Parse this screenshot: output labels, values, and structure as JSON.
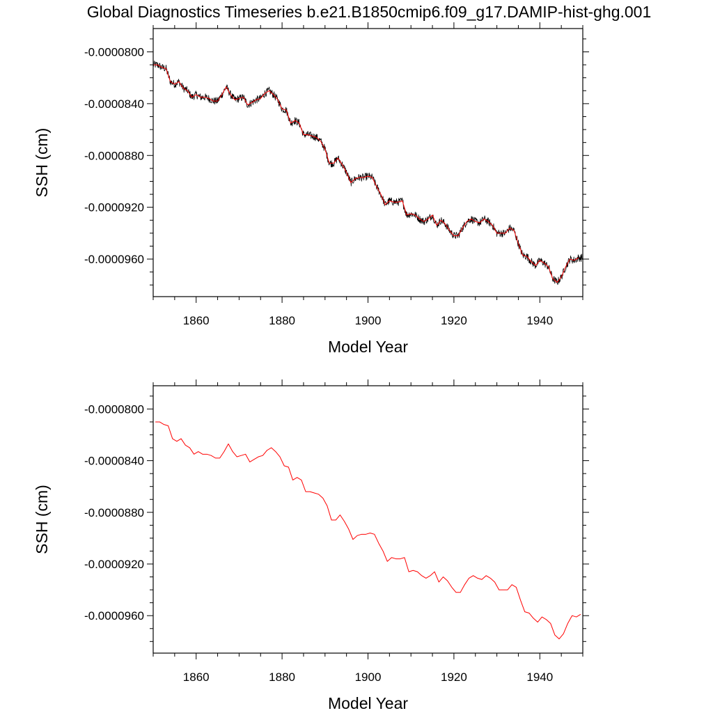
{
  "title": "Global Diagnostics Timeseries b.e21.B1850cmip6.f09_g17.DAMIP-hist-ghg.001",
  "colors": {
    "monthly": "#000000",
    "annual": "#ff0000",
    "axes": "#000000"
  },
  "chart_data": [
    {
      "type": "line",
      "title": "Global Diagnostics Timeseries b.e21.B1850cmip6.f09_g17.DAMIP-hist-ghg.001",
      "xlabel": "Model Year",
      "ylabel": "SSH (cm)",
      "xlim": [
        1850,
        1950
      ],
      "ylim": [
        -9.89e-05,
        -7.82e-05
      ],
      "xticks": [
        1860,
        1880,
        1900,
        1920,
        1940
      ],
      "xtick_labels": [
        "1860",
        "1880",
        "1900",
        "1920",
        "1940"
      ],
      "yticks": [
        -8e-05,
        -8.4e-05,
        -8.8e-05,
        -9.2e-05,
        -9.6e-05
      ],
      "ytick_labels": [
        "-0.0000800",
        "-0.0000840",
        "-0.0000880",
        "-0.0000920",
        "-0.0000960"
      ],
      "grid": false,
      "series": [
        {
          "key": "monthly",
          "color": "#000000",
          "resolution": "monthly",
          "noise": 3e-07,
          "follows": "annual"
        },
        {
          "key": "annual",
          "color": "#ff0000",
          "x": [
            1850,
            1851,
            1852,
            1853,
            1854,
            1855,
            1856,
            1857,
            1858,
            1859,
            1860,
            1861,
            1862,
            1863,
            1864,
            1865,
            1866,
            1867,
            1868,
            1869,
            1870,
            1871,
            1872,
            1873,
            1874,
            1875,
            1876,
            1877,
            1878,
            1879,
            1880,
            1881,
            1882,
            1883,
            1884,
            1885,
            1886,
            1887,
            1888,
            1889,
            1890,
            1891,
            1892,
            1893,
            1894,
            1895,
            1896,
            1897,
            1898,
            1899,
            1900,
            1901,
            1902,
            1903,
            1904,
            1905,
            1906,
            1907,
            1908,
            1909,
            1910,
            1911,
            1912,
            1913,
            1914,
            1915,
            1916,
            1917,
            1918,
            1919,
            1920,
            1921,
            1922,
            1923,
            1924,
            1925,
            1926,
            1927,
            1928,
            1929,
            1930,
            1931,
            1932,
            1933,
            1934,
            1935,
            1936,
            1937,
            1938,
            1939,
            1940,
            1941,
            1942,
            1943,
            1944,
            1945,
            1946,
            1947,
            1948,
            1949
          ],
          "y": [
            -8.1e-05,
            -8.1e-05,
            -8.12e-05,
            -8.13e-05,
            -8.23e-05,
            -8.25e-05,
            -8.23e-05,
            -8.28e-05,
            -8.3e-05,
            -8.35e-05,
            -8.33e-05,
            -8.35e-05,
            -8.35e-05,
            -8.36e-05,
            -8.38e-05,
            -8.38e-05,
            -8.33e-05,
            -8.27e-05,
            -8.33e-05,
            -8.37e-05,
            -8.36e-05,
            -8.35e-05,
            -8.41e-05,
            -8.39e-05,
            -8.37e-05,
            -8.36e-05,
            -8.32e-05,
            -8.3e-05,
            -8.33e-05,
            -8.37e-05,
            -8.44e-05,
            -8.45e-05,
            -8.55e-05,
            -8.53e-05,
            -8.55e-05,
            -8.64e-05,
            -8.64e-05,
            -8.65e-05,
            -8.66e-05,
            -8.69e-05,
            -8.75e-05,
            -8.86e-05,
            -8.86e-05,
            -8.82e-05,
            -8.87e-05,
            -8.93e-05,
            -9.01e-05,
            -8.98e-05,
            -8.97e-05,
            -8.97e-05,
            -8.96e-05,
            -8.97e-05,
            -9.04e-05,
            -9.1e-05,
            -9.18e-05,
            -9.15e-05,
            -9.16e-05,
            -9.16e-05,
            -9.15e-05,
            -9.26e-05,
            -9.25e-05,
            -9.26e-05,
            -9.29e-05,
            -9.31e-05,
            -9.29e-05,
            -9.26e-05,
            -9.34e-05,
            -9.3e-05,
            -9.33e-05,
            -9.38e-05,
            -9.42e-05,
            -9.42e-05,
            -9.36e-05,
            -9.31e-05,
            -9.29e-05,
            -9.31e-05,
            -9.32e-05,
            -9.29e-05,
            -9.31e-05,
            -9.34e-05,
            -9.4e-05,
            -9.4e-05,
            -9.4e-05,
            -9.36e-05,
            -9.38e-05,
            -9.48e-05,
            -9.57e-05,
            -9.58e-05,
            -9.62e-05,
            -9.65e-05,
            -9.61e-05,
            -9.63e-05,
            -9.66e-05,
            -9.75e-05,
            -9.78e-05,
            -9.74e-05,
            -9.66e-05,
            -9.6e-05,
            -9.61e-05,
            -9.59e-05
          ]
        }
      ]
    },
    {
      "type": "line",
      "title": "",
      "xlabel": "Model Year",
      "ylabel": "SSH (cm)",
      "xlim": [
        1850,
        1950
      ],
      "ylim": [
        -9.89e-05,
        -7.82e-05
      ],
      "xticks": [
        1860,
        1880,
        1900,
        1920,
        1940
      ],
      "xtick_labels": [
        "1860",
        "1880",
        "1900",
        "1920",
        "1940"
      ],
      "yticks": [
        -8e-05,
        -8.4e-05,
        -8.8e-05,
        -9.2e-05,
        -9.6e-05
      ],
      "ytick_labels": [
        "-0.0000800",
        "-0.0000840",
        "-0.0000880",
        "-0.0000920",
        "-0.0000960"
      ],
      "grid": false,
      "series": [
        {
          "key": "annual",
          "color": "#ff0000",
          "x": [
            1850.5,
            1851.5,
            1852.5,
            1853.5,
            1854.5,
            1855.5,
            1856.5,
            1857.5,
            1858.5,
            1859.5,
            1860.5,
            1861.5,
            1862.5,
            1863.5,
            1864.5,
            1865.5,
            1866.5,
            1867.5,
            1868.5,
            1869.5,
            1870.5,
            1871.5,
            1872.5,
            1873.5,
            1874.5,
            1875.5,
            1876.5,
            1877.5,
            1878.5,
            1879.5,
            1880.5,
            1881.5,
            1882.5,
            1883.5,
            1884.5,
            1885.5,
            1886.5,
            1887.5,
            1888.5,
            1889.5,
            1890.5,
            1891.5,
            1892.5,
            1893.5,
            1894.5,
            1895.5,
            1896.5,
            1897.5,
            1898.5,
            1899.5,
            1900.5,
            1901.5,
            1902.5,
            1903.5,
            1904.5,
            1905.5,
            1906.5,
            1907.5,
            1908.5,
            1909.5,
            1910.5,
            1911.5,
            1912.5,
            1913.5,
            1914.5,
            1915.5,
            1916.5,
            1917.5,
            1918.5,
            1919.5,
            1920.5,
            1921.5,
            1922.5,
            1923.5,
            1924.5,
            1925.5,
            1926.5,
            1927.5,
            1928.5,
            1929.5,
            1930.5,
            1931.5,
            1932.5,
            1933.5,
            1934.5,
            1935.5,
            1936.5,
            1937.5,
            1938.5,
            1939.5,
            1940.5,
            1941.5,
            1942.5,
            1943.5,
            1944.5,
            1945.5,
            1946.5,
            1947.5,
            1948.5,
            1949.5
          ],
          "y": [
            -8.1e-05,
            -8.1e-05,
            -8.12e-05,
            -8.13e-05,
            -8.23e-05,
            -8.25e-05,
            -8.23e-05,
            -8.28e-05,
            -8.3e-05,
            -8.35e-05,
            -8.33e-05,
            -8.35e-05,
            -8.35e-05,
            -8.36e-05,
            -8.38e-05,
            -8.38e-05,
            -8.33e-05,
            -8.27e-05,
            -8.33e-05,
            -8.37e-05,
            -8.36e-05,
            -8.35e-05,
            -8.41e-05,
            -8.39e-05,
            -8.37e-05,
            -8.36e-05,
            -8.32e-05,
            -8.3e-05,
            -8.33e-05,
            -8.37e-05,
            -8.44e-05,
            -8.45e-05,
            -8.55e-05,
            -8.53e-05,
            -8.55e-05,
            -8.64e-05,
            -8.64e-05,
            -8.65e-05,
            -8.66e-05,
            -8.69e-05,
            -8.75e-05,
            -8.86e-05,
            -8.86e-05,
            -8.82e-05,
            -8.87e-05,
            -8.93e-05,
            -9.01e-05,
            -8.98e-05,
            -8.97e-05,
            -8.97e-05,
            -8.96e-05,
            -8.97e-05,
            -9.04e-05,
            -9.1e-05,
            -9.18e-05,
            -9.15e-05,
            -9.16e-05,
            -9.16e-05,
            -9.15e-05,
            -9.26e-05,
            -9.25e-05,
            -9.26e-05,
            -9.29e-05,
            -9.31e-05,
            -9.29e-05,
            -9.26e-05,
            -9.34e-05,
            -9.3e-05,
            -9.33e-05,
            -9.38e-05,
            -9.42e-05,
            -9.42e-05,
            -9.36e-05,
            -9.31e-05,
            -9.29e-05,
            -9.31e-05,
            -9.32e-05,
            -9.29e-05,
            -9.31e-05,
            -9.34e-05,
            -9.4e-05,
            -9.4e-05,
            -9.4e-05,
            -9.36e-05,
            -9.38e-05,
            -9.48e-05,
            -9.57e-05,
            -9.58e-05,
            -9.62e-05,
            -9.65e-05,
            -9.61e-05,
            -9.63e-05,
            -9.66e-05,
            -9.75e-05,
            -9.78e-05,
            -9.74e-05,
            -9.66e-05,
            -9.6e-05,
            -9.61e-05,
            -9.59e-05
          ]
        }
      ]
    }
  ]
}
